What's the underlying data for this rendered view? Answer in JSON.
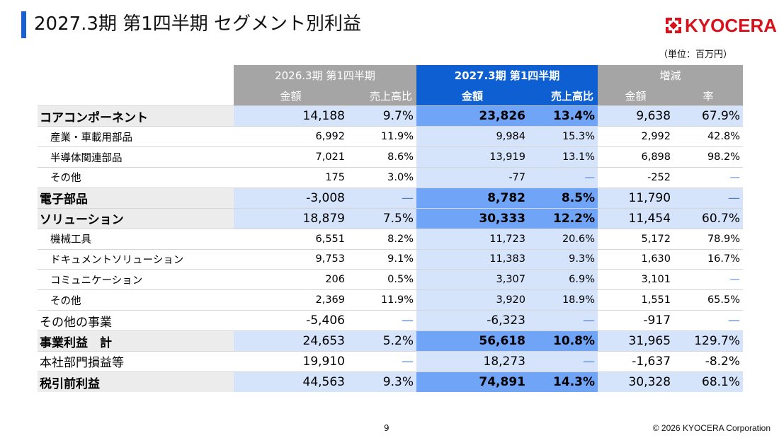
{
  "header": {
    "title": "2027.3期 第1四半期 セグメント別利益",
    "logo_text": "KYOCERA",
    "unit": "（単位：百万円）"
  },
  "table": {
    "group_prev": "2026.3期 第1四半期",
    "group_cur": "2027.3期 第1四半期",
    "group_diff": "増減",
    "sub_amount": "金額",
    "sub_ratio": "売上高比",
    "sub_rate": "率",
    "rows": [
      {
        "label": "コアコンポーネント",
        "level": "main",
        "prev_amount": "14,188",
        "prev_ratio": "9.7%",
        "cur_amount": "23,826",
        "cur_ratio": "13.4%",
        "diff_amount": "9,638",
        "diff_rate": "67.9%"
      },
      {
        "label": "産業・車載用部品",
        "level": "sub",
        "prev_amount": "6,992",
        "prev_ratio": "11.9%",
        "cur_amount": "9,984",
        "cur_ratio": "15.3%",
        "diff_amount": "2,992",
        "diff_rate": "42.8%"
      },
      {
        "label": "半導体関連部品",
        "level": "sub",
        "prev_amount": "7,021",
        "prev_ratio": "8.6%",
        "cur_amount": "13,919",
        "cur_ratio": "13.1%",
        "diff_amount": "6,898",
        "diff_rate": "98.2%"
      },
      {
        "label": "その他",
        "level": "sub",
        "prev_amount": "175",
        "prev_ratio": "3.0%",
        "cur_amount": "-77",
        "cur_ratio": "—",
        "diff_amount": "-252",
        "diff_rate": "—"
      },
      {
        "label": "電子部品",
        "level": "main",
        "prev_amount": "-3,008",
        "prev_ratio": "—",
        "cur_amount": "8,782",
        "cur_ratio": "8.5%",
        "diff_amount": "11,790",
        "diff_rate": "—"
      },
      {
        "label": "ソリューション",
        "level": "main",
        "prev_amount": "18,879",
        "prev_ratio": "7.5%",
        "cur_amount": "30,333",
        "cur_ratio": "12.2%",
        "diff_amount": "11,454",
        "diff_rate": "60.7%"
      },
      {
        "label": "機械工具",
        "level": "sub",
        "prev_amount": "6,551",
        "prev_ratio": "8.2%",
        "cur_amount": "11,723",
        "cur_ratio": "20.6%",
        "diff_amount": "5,172",
        "diff_rate": "78.9%"
      },
      {
        "label": "ドキュメントソリューション",
        "level": "sub",
        "prev_amount": "9,753",
        "prev_ratio": "9.1%",
        "cur_amount": "11,383",
        "cur_ratio": "9.3%",
        "diff_amount": "1,630",
        "diff_rate": "16.7%"
      },
      {
        "label": "コミュニケーション",
        "level": "sub",
        "prev_amount": "206",
        "prev_ratio": "0.5%",
        "cur_amount": "3,307",
        "cur_ratio": "6.9%",
        "diff_amount": "3,101",
        "diff_rate": "—"
      },
      {
        "label": "その他",
        "level": "sub",
        "prev_amount": "2,369",
        "prev_ratio": "11.9%",
        "cur_amount": "3,920",
        "cur_ratio": "18.9%",
        "diff_amount": "1,551",
        "diff_rate": "65.5%"
      },
      {
        "label": "その他の事業",
        "level": "plain",
        "prev_amount": "-5,406",
        "prev_ratio": "—",
        "cur_amount": "-6,323",
        "cur_ratio": "—",
        "diff_amount": "-917",
        "diff_rate": "—"
      },
      {
        "label": "事業利益　計",
        "level": "total",
        "prev_amount": "24,653",
        "prev_ratio": "5.2%",
        "cur_amount": "56,618",
        "cur_ratio": "10.8%",
        "diff_amount": "31,965",
        "diff_rate": "129.7%"
      },
      {
        "label": "本社部門損益等",
        "level": "plain",
        "prev_amount": "19,910",
        "prev_ratio": "—",
        "cur_amount": "18,273",
        "cur_ratio": "—",
        "diff_amount": "-1,637",
        "diff_rate": "-8.2%"
      },
      {
        "label": "税引前利益",
        "level": "main",
        "prev_amount": "44,563",
        "prev_ratio": "9.3%",
        "cur_amount": "74,891",
        "cur_ratio": "14.3%",
        "diff_amount": "30,328",
        "diff_rate": "68.1%"
      }
    ]
  },
  "footer": {
    "page_number": "9",
    "copyright": "© 2026 KYOCERA Corporation"
  },
  "colors": {
    "accent_blue": "#0d5fd2",
    "header_gray": "#a5a5a5",
    "light_blue": "#d5e4fb",
    "mid_blue": "#6fa4f6",
    "logo_red": "#d8121c"
  }
}
